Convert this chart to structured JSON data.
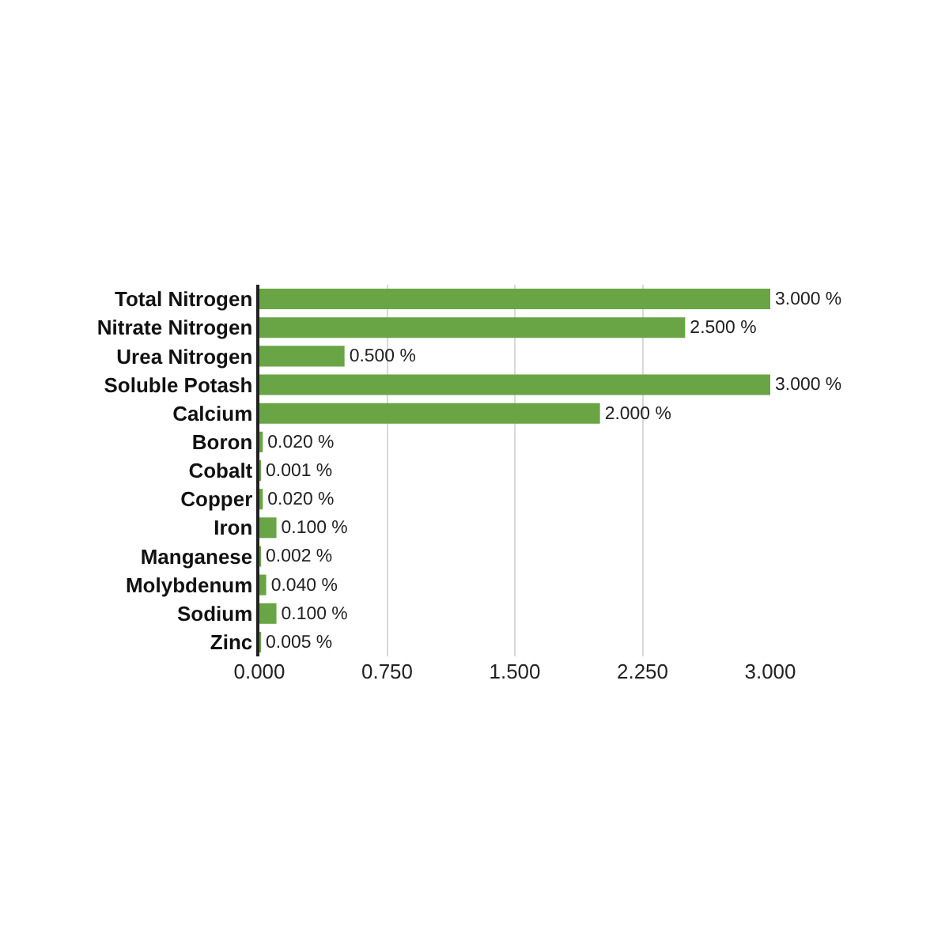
{
  "chart_data": {
    "type": "bar",
    "orientation": "horizontal",
    "categories": [
      "Total Nitrogen",
      "Nitrate Nitrogen",
      "Urea Nitrogen",
      "Soluble Potash",
      "Calcium",
      "Boron",
      "Cobalt",
      "Copper",
      "Iron",
      "Manganese",
      "Molybdenum",
      "Sodium",
      "Zinc"
    ],
    "values": [
      3,
      2.5,
      0.5,
      3,
      2,
      0.02,
      0.001,
      0.02,
      0.1,
      0.002,
      0.04,
      0.1,
      0.005
    ],
    "value_labels": [
      "3.000 %",
      "2.500 %",
      "0.500 %",
      "3.000 %",
      "2.000 %",
      "0.020 %",
      "0.001 %",
      "0.020 %",
      "0.100 %",
      "0.002 %",
      "0.040 %",
      "0.100 %",
      "0.005 %"
    ],
    "color": "#69a545",
    "xlim": [
      0,
      3
    ],
    "xticks": [
      {
        "value": 0,
        "label": "0.000"
      },
      {
        "value": 0.75,
        "label": "0.750"
      },
      {
        "value": 1.5,
        "label": "1.500"
      },
      {
        "value": 2.25,
        "label": "2.250"
      },
      {
        "value": 3,
        "label": "3.000"
      }
    ],
    "grid": "x"
  }
}
